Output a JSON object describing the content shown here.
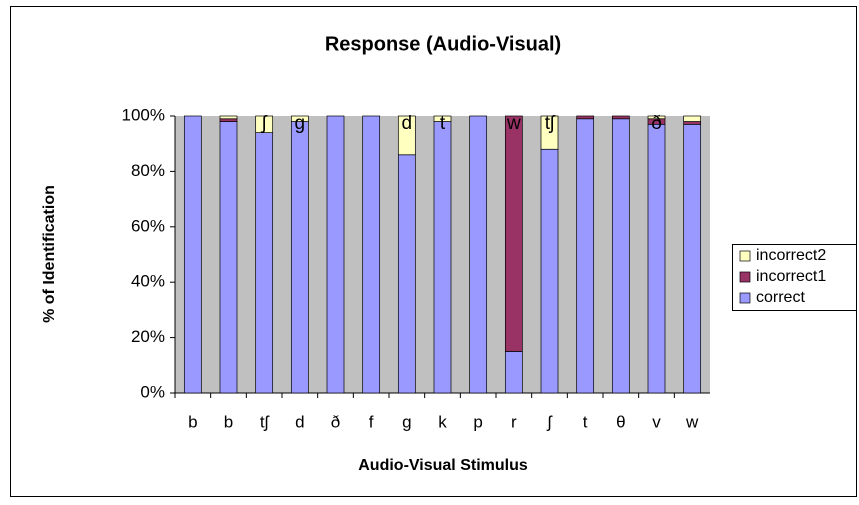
{
  "chart_data": {
    "type": "stacked_bar",
    "title": "Response (Audio-Visual)",
    "x_label": "Audio-Visual Stimulus",
    "y_label": "% of Identification",
    "categories": [
      "b",
      "b",
      "tʃ",
      "d",
      "ð",
      "f",
      "g",
      "k",
      "p",
      "r",
      "ʃ",
      "t",
      "θ",
      "v",
      "w"
    ],
    "series": [
      {
        "name": "correct",
        "color": "#9999ff",
        "values": [
          100,
          98,
          94,
          98,
          100,
          100,
          86,
          98,
          100,
          15,
          88,
          99,
          99,
          97,
          97
        ]
      },
      {
        "name": "incorrect1",
        "color": "#993366",
        "values": [
          0,
          1,
          0,
          0,
          0,
          0,
          0,
          0,
          0,
          85,
          0,
          1,
          1,
          2,
          1
        ]
      },
      {
        "name": "incorrect2",
        "color": "#ffffc0",
        "values": [
          0,
          1,
          6,
          2,
          0,
          0,
          14,
          2,
          0,
          0,
          12,
          0,
          0,
          1,
          2
        ]
      }
    ],
    "bar_annotations": [
      null,
      null,
      "ʃ",
      "g",
      null,
      null,
      "d",
      "t",
      null,
      "w",
      "tʃ",
      null,
      null,
      "ð",
      null
    ],
    "ylim": [
      0,
      100
    ],
    "yticks": [
      {
        "value": 0,
        "label": "0%"
      },
      {
        "value": 20,
        "label": "20%"
      },
      {
        "value": 40,
        "label": "40%"
      },
      {
        "value": 60,
        "label": "60%"
      },
      {
        "value": 80,
        "label": "80%"
      },
      {
        "value": 100,
        "label": "100%"
      }
    ],
    "grid": false,
    "legend": "right",
    "plot_background": "#c0c0c0"
  }
}
